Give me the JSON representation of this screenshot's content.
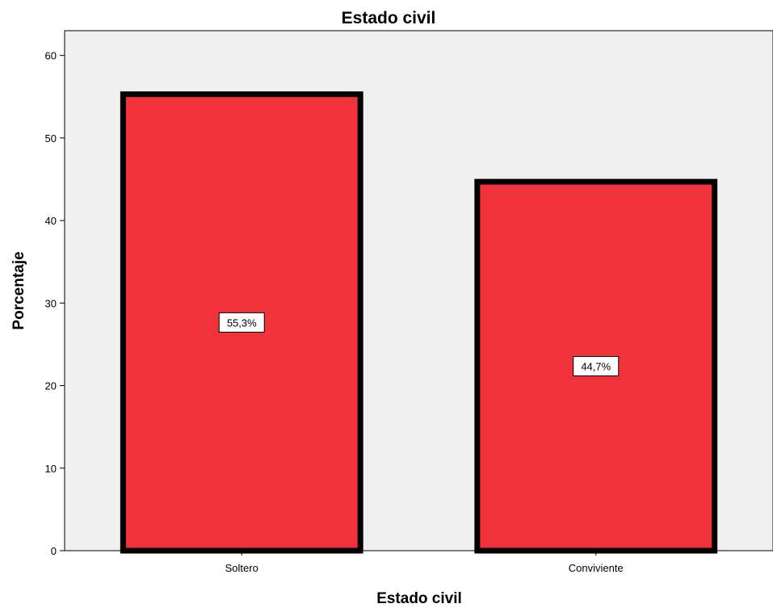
{
  "chart_data": {
    "type": "bar",
    "title": "Estado civil",
    "xlabel": "Estado civil",
    "ylabel": "Porcentaje",
    "categories": [
      "Soltero",
      "Conviviente"
    ],
    "values": [
      55.3,
      44.7
    ],
    "data_labels": [
      "55,3%",
      "44,7%"
    ],
    "ylim": [
      0,
      63
    ],
    "yticks": [
      0,
      10,
      20,
      30,
      40,
      50,
      60
    ],
    "bar_color": "#f0333a",
    "bar_border_color": "#000000",
    "plot_background": "#f0f0f0",
    "grid": false,
    "legend": "none"
  }
}
